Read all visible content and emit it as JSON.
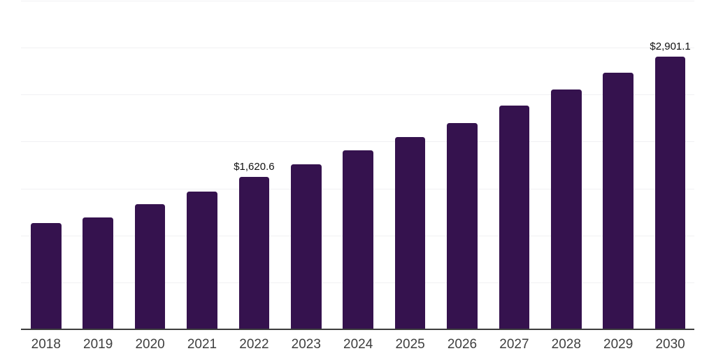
{
  "chart_data": {
    "type": "bar",
    "title": "",
    "xlabel": "",
    "ylabel": "",
    "categories": [
      "2018",
      "2019",
      "2020",
      "2021",
      "2022",
      "2023",
      "2024",
      "2025",
      "2026",
      "2027",
      "2028",
      "2029",
      "2030"
    ],
    "values": [
      1135,
      1190,
      1330,
      1470,
      1620.6,
      1760,
      1910,
      2050,
      2200,
      2385,
      2555,
      2735,
      2901.1
    ],
    "value_labels": {
      "2022": "$1,620.6",
      "2030": "$2,901.1"
    },
    "ylim": [
      0,
      3500
    ],
    "grid": "horizontal",
    "gridline_count": 7,
    "legend": "none",
    "bar_color": "#35124e"
  },
  "style": {
    "background": "#ffffff",
    "gridline_color": "#f1f1f3",
    "axis_color": "#3d3d3d",
    "tick_label_color": "#3f3f3f",
    "value_label_color": "#111111"
  }
}
